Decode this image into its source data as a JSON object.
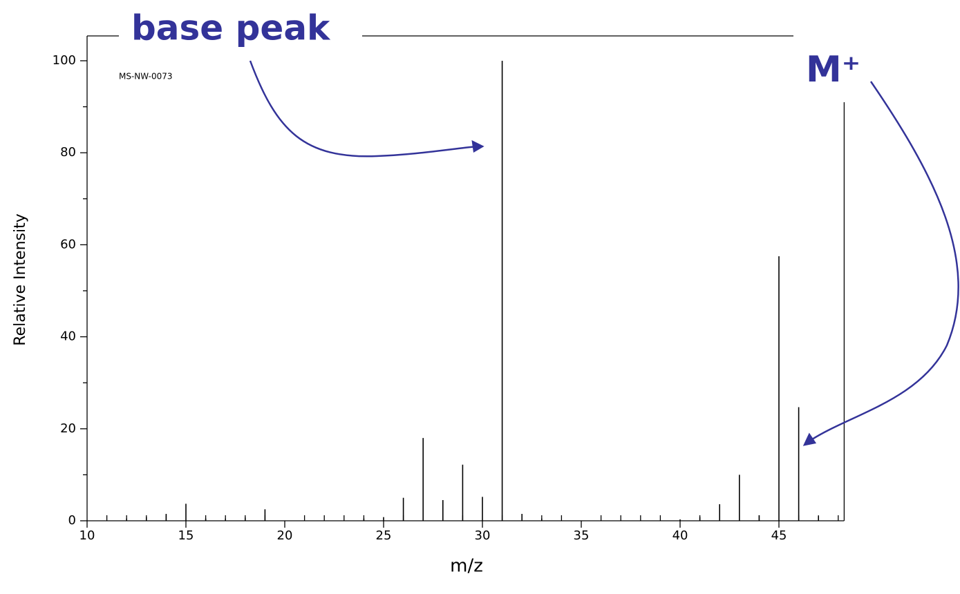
{
  "chart_data": {
    "type": "spectrum",
    "xlabel": "m/z",
    "ylabel": "Relative Intensity",
    "note": "MS-NW-0073",
    "annotations": [
      "base peak",
      "M⁺"
    ],
    "color": "#000000",
    "annotation_color": "#333399",
    "x": [
      12,
      13,
      14,
      15,
      16,
      17,
      18,
      19,
      24,
      25,
      26,
      27,
      28,
      29,
      30,
      31,
      32,
      33,
      40,
      41,
      42,
      43,
      44,
      45,
      46,
      47
    ],
    "values": [
      0.5,
      0.8,
      1.5,
      3.7,
      0.5,
      0.5,
      0.7,
      2.5,
      0.5,
      0.8,
      5,
      18,
      4.5,
      12.2,
      5.2,
      100,
      1.5,
      0.5,
      0.3,
      0.8,
      3.6,
      10,
      1.2,
      57.5,
      24.7,
      1
    ],
    "xlim": [
      10,
      48.3
    ],
    "ylim": [
      0,
      105.4
    ],
    "xticks": [
      10,
      15,
      20,
      25,
      30,
      35,
      40,
      45
    ],
    "xminorticks": [
      11,
      12,
      13,
      14,
      16,
      17,
      18,
      19,
      21,
      22,
      23,
      24,
      26,
      27,
      28,
      29,
      31,
      32,
      33,
      34,
      36,
      37,
      38,
      39,
      41,
      42,
      43,
      44,
      46,
      47,
      48
    ],
    "yticks": [
      0,
      20,
      40,
      60,
      80,
      100
    ],
    "yminorticks": [
      10,
      30,
      50,
      70,
      90
    ]
  }
}
